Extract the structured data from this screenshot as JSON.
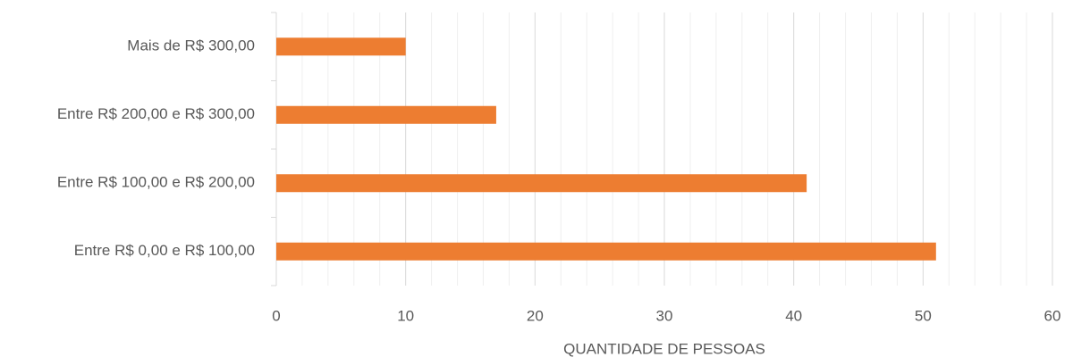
{
  "chart_data": {
    "type": "barh",
    "categories": [
      "Entre R$ 0,00 e R$ 100,00",
      "Entre R$ 100,00 e R$ 200,00",
      "Entre R$ 200,00 e R$ 300,00",
      "Mais de R$ 300,00"
    ],
    "values": [
      51,
      41,
      17,
      10
    ],
    "color": "#ed7d31",
    "xlabel": "QUANTIDADE DE PESSOAS",
    "xlim": [
      0,
      60
    ],
    "xticks": [
      0,
      10,
      20,
      30,
      40,
      50,
      60
    ],
    "grid": true,
    "minor_grid": true
  }
}
